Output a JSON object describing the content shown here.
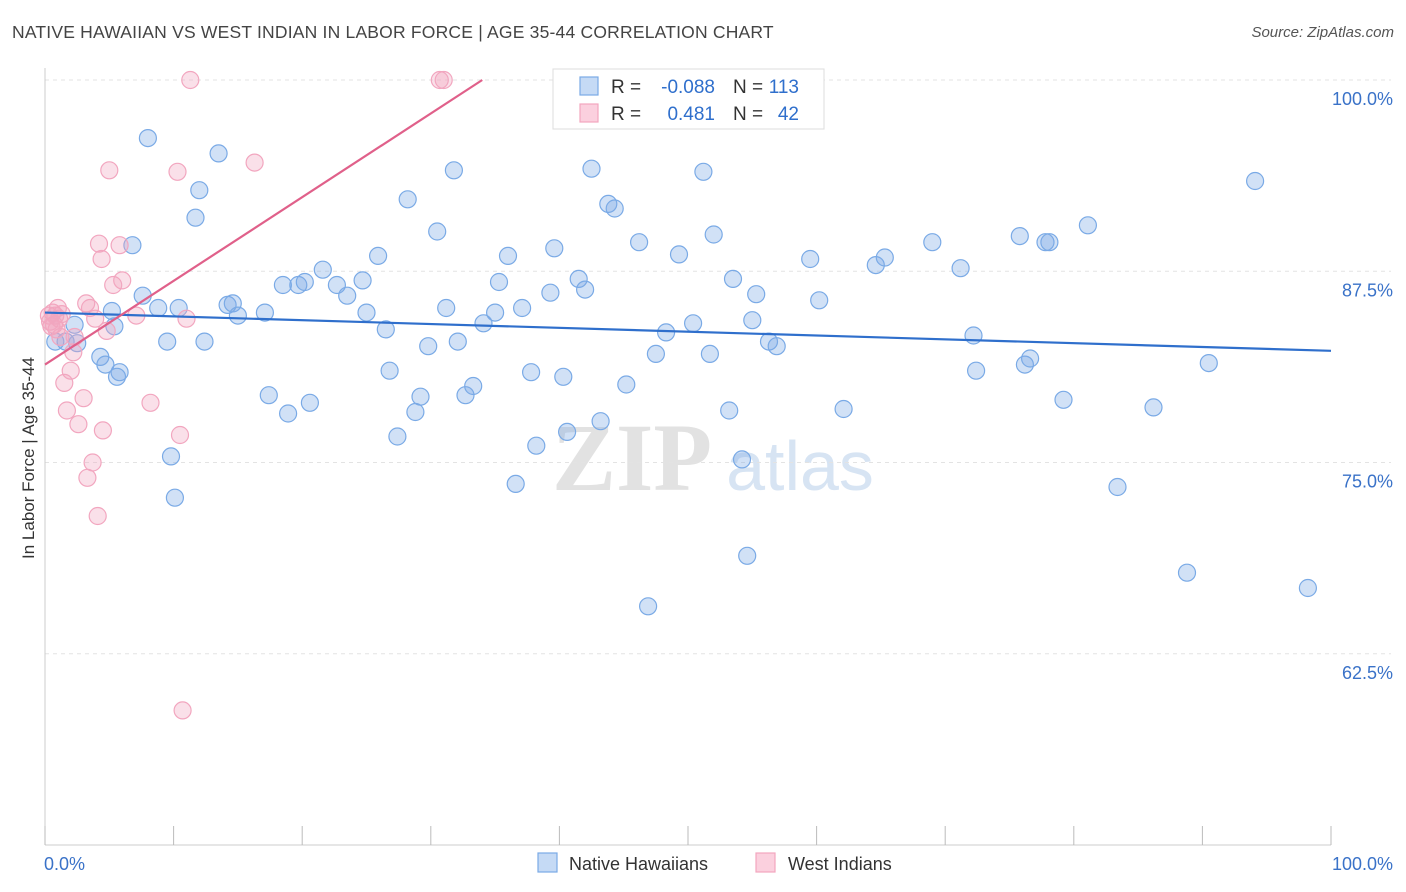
{
  "header": {
    "title": "NATIVE HAWAIIAN VS WEST INDIAN IN LABOR FORCE | AGE 35-44 CORRELATION CHART",
    "source": "Source: ZipAtlas.com"
  },
  "watermark": {
    "zip": "ZIP",
    "atlas": "atlas"
  },
  "legend_top": {
    "rows": [
      {
        "r_label": "R =",
        "r_value": "-0.088",
        "n_label": "N =",
        "n_value": "113"
      },
      {
        "r_label": "R =",
        "r_value": "0.481",
        "n_label": "N =",
        "n_value": "42"
      }
    ]
  },
  "chart_data": {
    "type": "scatter",
    "title": "NATIVE HAWAIIAN VS WEST INDIAN IN LABOR FORCE | AGE 35-44 CORRELATION CHART",
    "xlabel": "",
    "ylabel": "In Labor Force | Age 35-44",
    "xlim": [
      0,
      100
    ],
    "ylim": [
      50,
      100
    ],
    "x_tick_labels": [
      "0.0%",
      "100.0%"
    ],
    "y_ticks": [
      62.5,
      75.0,
      87.5,
      100.0
    ],
    "y_tick_labels": [
      "62.5%",
      "75.0%",
      "87.5%",
      "100.0%"
    ],
    "grid": true,
    "legend_placement": "bottom-center",
    "series": [
      {
        "name": "Native Hawaiians",
        "color": "#7aaae6",
        "line_color": "#2f6fcc",
        "trend": [
          [
            0,
            84.8
          ],
          [
            100,
            82.3
          ]
        ],
        "points": [
          [
            0.8,
            82.9
          ],
          [
            1.6,
            82.9
          ],
          [
            2.3,
            84.0
          ],
          [
            2.5,
            82.8
          ],
          [
            4.3,
            81.9
          ],
          [
            4.7,
            81.4
          ],
          [
            5.2,
            84.9
          ],
          [
            5.8,
            80.9
          ],
          [
            5.4,
            83.9
          ],
          [
            5.6,
            80.6
          ],
          [
            6.8,
            89.2
          ],
          [
            7.6,
            85.9
          ],
          [
            8.0,
            96.2
          ],
          [
            8.8,
            85.1
          ],
          [
            9.5,
            82.9
          ],
          [
            9.8,
            75.4
          ],
          [
            10.1,
            72.7
          ],
          [
            10.4,
            85.1
          ],
          [
            11.7,
            91.0
          ],
          [
            12.0,
            92.8
          ],
          [
            12.4,
            82.9
          ],
          [
            13.5,
            95.2
          ],
          [
            14.2,
            85.3
          ],
          [
            14.6,
            85.4
          ],
          [
            15.0,
            84.6
          ],
          [
            17.1,
            84.8
          ],
          [
            17.4,
            79.4
          ],
          [
            18.5,
            86.6
          ],
          [
            18.9,
            78.2
          ],
          [
            19.7,
            86.6
          ],
          [
            20.2,
            86.8
          ],
          [
            20.6,
            78.9
          ],
          [
            21.6,
            87.6
          ],
          [
            22.7,
            86.6
          ],
          [
            23.5,
            85.9
          ],
          [
            24.7,
            86.9
          ],
          [
            25.0,
            84.8
          ],
          [
            25.9,
            88.5
          ],
          [
            26.5,
            83.7
          ],
          [
            26.8,
            81.0
          ],
          [
            27.4,
            76.7
          ],
          [
            28.2,
            92.2
          ],
          [
            28.8,
            78.3
          ],
          [
            29.2,
            79.3
          ],
          [
            29.8,
            82.6
          ],
          [
            30.5,
            90.1
          ],
          [
            31.2,
            85.1
          ],
          [
            31.8,
            94.1
          ],
          [
            32.1,
            82.9
          ],
          [
            32.7,
            79.4
          ],
          [
            33.3,
            80.0
          ],
          [
            34.1,
            84.1
          ],
          [
            35.0,
            84.8
          ],
          [
            35.3,
            86.8
          ],
          [
            36.0,
            88.5
          ],
          [
            36.6,
            73.6
          ],
          [
            37.1,
            85.1
          ],
          [
            37.8,
            80.9
          ],
          [
            38.2,
            76.1
          ],
          [
            39.3,
            86.1
          ],
          [
            39.6,
            89.0
          ],
          [
            40.3,
            80.6
          ],
          [
            40.6,
            77.0
          ],
          [
            41.5,
            87.0
          ],
          [
            42.0,
            86.3
          ],
          [
            42.5,
            94.2
          ],
          [
            43.2,
            77.7
          ],
          [
            43.8,
            91.9
          ],
          [
            44.3,
            91.6
          ],
          [
            45.2,
            80.1
          ],
          [
            46.2,
            89.4
          ],
          [
            46.9,
            65.6
          ],
          [
            47.5,
            82.1
          ],
          [
            48.3,
            83.5
          ],
          [
            49.3,
            88.6
          ],
          [
            50.4,
            84.1
          ],
          [
            51.2,
            94.0
          ],
          [
            51.7,
            82.1
          ],
          [
            52.0,
            89.9
          ],
          [
            53.2,
            78.4
          ],
          [
            53.5,
            87.0
          ],
          [
            54.2,
            75.2
          ],
          [
            54.6,
            68.9
          ],
          [
            55.0,
            84.3
          ],
          [
            55.3,
            86.0
          ],
          [
            56.3,
            82.9
          ],
          [
            56.9,
            82.6
          ],
          [
            59.5,
            88.3
          ],
          [
            60.2,
            85.6
          ],
          [
            62.1,
            78.5
          ],
          [
            64.6,
            87.9
          ],
          [
            65.3,
            88.4
          ],
          [
            69.0,
            89.4
          ],
          [
            71.2,
            87.7
          ],
          [
            72.2,
            83.3
          ],
          [
            72.4,
            81.0
          ],
          [
            75.8,
            89.8
          ],
          [
            76.2,
            81.4
          ],
          [
            76.6,
            81.8
          ],
          [
            77.8,
            89.4
          ],
          [
            78.1,
            89.4
          ],
          [
            79.2,
            79.1
          ],
          [
            81.1,
            90.5
          ],
          [
            83.4,
            73.4
          ],
          [
            86.2,
            78.6
          ],
          [
            88.8,
            67.8
          ],
          [
            90.5,
            81.5
          ],
          [
            94.1,
            93.4
          ],
          [
            98.2,
            66.8
          ]
        ]
      },
      {
        "name": "West Indians",
        "color": "#f2a6bf",
        "line_color": "#e0608a",
        "trend": [
          [
            0,
            81.4
          ],
          [
            34,
            100
          ]
        ],
        "points": [
          [
            0.3,
            84.6
          ],
          [
            0.4,
            84.2
          ],
          [
            0.5,
            83.9
          ],
          [
            0.6,
            84.8
          ],
          [
            0.7,
            84.0
          ],
          [
            0.8,
            84.6
          ],
          [
            0.9,
            83.7
          ],
          [
            1.0,
            85.1
          ],
          [
            1.1,
            84.4
          ],
          [
            1.2,
            83.2
          ],
          [
            1.3,
            84.7
          ],
          [
            1.5,
            80.2
          ],
          [
            1.7,
            78.4
          ],
          [
            2.0,
            81.0
          ],
          [
            2.2,
            82.2
          ],
          [
            2.3,
            83.2
          ],
          [
            2.6,
            77.5
          ],
          [
            3.0,
            79.2
          ],
          [
            3.2,
            85.4
          ],
          [
            3.3,
            74.0
          ],
          [
            3.5,
            85.1
          ],
          [
            3.7,
            75.0
          ],
          [
            3.9,
            84.4
          ],
          [
            4.1,
            71.5
          ],
          [
            4.2,
            89.3
          ],
          [
            4.4,
            88.3
          ],
          [
            4.5,
            77.1
          ],
          [
            4.8,
            83.6
          ],
          [
            5.0,
            94.1
          ],
          [
            5.3,
            86.6
          ],
          [
            5.8,
            89.2
          ],
          [
            6.0,
            86.9
          ],
          [
            7.1,
            84.6
          ],
          [
            8.2,
            78.9
          ],
          [
            10.3,
            94.0
          ],
          [
            10.5,
            76.8
          ],
          [
            10.7,
            58.8
          ],
          [
            11.0,
            84.4
          ],
          [
            11.3,
            100.0
          ],
          [
            16.3,
            94.6
          ],
          [
            30.7,
            100.0
          ],
          [
            31.0,
            100.0
          ]
        ]
      }
    ]
  }
}
